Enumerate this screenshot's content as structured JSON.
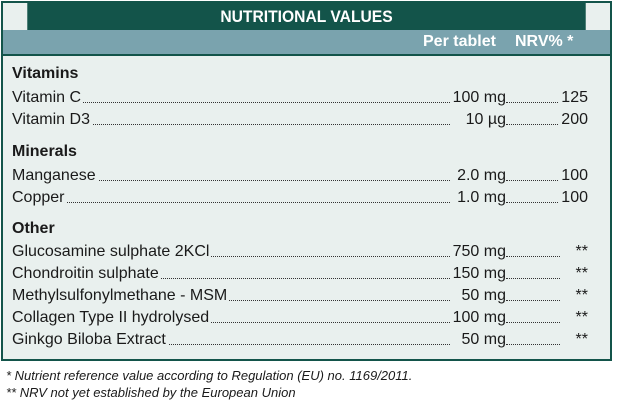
{
  "title": "NUTRITIONAL VALUES",
  "columns": {
    "per_tablet": "Per tablet",
    "nrv": "NRV% *"
  },
  "sections": [
    {
      "name": "Vitamins",
      "rows": [
        {
          "name": "Vitamin C",
          "amount": "100 mg",
          "nrv": "125"
        },
        {
          "name": "Vitamin D3",
          "amount": "10 µg",
          "nrv": "200"
        }
      ]
    },
    {
      "name": "Minerals",
      "rows": [
        {
          "name": "Manganese",
          "amount": "2.0 mg",
          "nrv": "100"
        },
        {
          "name": "Copper",
          "amount": "1.0 mg",
          "nrv": "100"
        }
      ]
    },
    {
      "name": "Other",
      "rows": [
        {
          "name": "Glucosamine sulphate 2KCl",
          "amount": "750 mg",
          "nrv": "**"
        },
        {
          "name": "Chondroitin sulphate",
          "amount": "150 mg",
          "nrv": "**"
        },
        {
          "name": "Methylsulfonylmethane - MSM",
          "amount": "50 mg",
          "nrv": "**"
        },
        {
          "name": "Collagen Type II hydrolysed",
          "amount": "100 mg",
          "nrv": "**"
        },
        {
          "name": "Ginkgo Biloba Extract",
          "amount": "50 mg",
          "nrv": "**"
        }
      ]
    }
  ],
  "footnotes": [
    "* Nutrient reference value according to Regulation (EU) no. 1169/2011.",
    "** NRV not yet established by the European Union"
  ],
  "colors": {
    "header": "#13544a",
    "subheader": "#7aa3ae",
    "panel": "#e9f0ee"
  }
}
